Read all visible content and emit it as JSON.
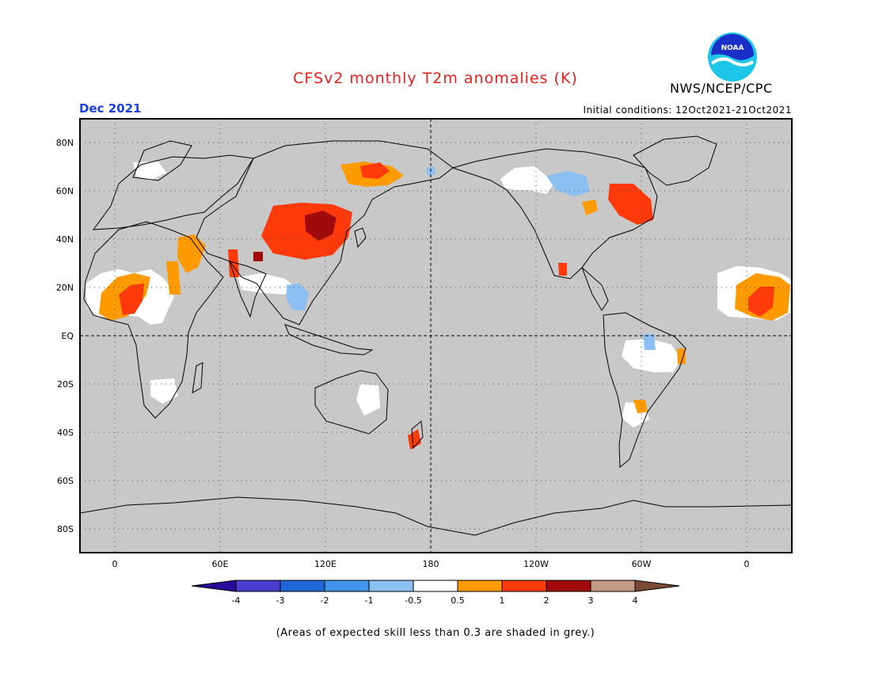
{
  "title": "CFSv2 monthly T2m anomalies (K)",
  "organization": "NWS/NCEP/CPC",
  "logo_text": "NOAA",
  "month": "Dec 2021",
  "initial_conditions": "Initial conditions: 12Oct2021-21Oct2021",
  "footnote": "(Areas of expected skill less than 0.3 are shaded in grey.)",
  "map": {
    "lat_labels": [
      "80N",
      "60N",
      "40N",
      "20N",
      "EQ",
      "20S",
      "40S",
      "60S",
      "80S"
    ],
    "lon_labels": [
      "0",
      "60E",
      "120E",
      "180",
      "120W",
      "60W",
      "0"
    ],
    "background_color": "#c8c8c8"
  },
  "colorbar": {
    "colors": [
      "#2a0a9a",
      "#4a3ccc",
      "#1f66d6",
      "#3f95ea",
      "#8cc0f2",
      "#ffffff",
      "#ff9a00",
      "#ff3a0a",
      "#a00a0a",
      "#c49a86",
      "#7a4a34"
    ],
    "tick_labels": [
      "-4",
      "-3",
      "-2",
      "-1",
      "-0.5",
      "0.5",
      "1",
      "2",
      "3",
      "4"
    ]
  }
}
